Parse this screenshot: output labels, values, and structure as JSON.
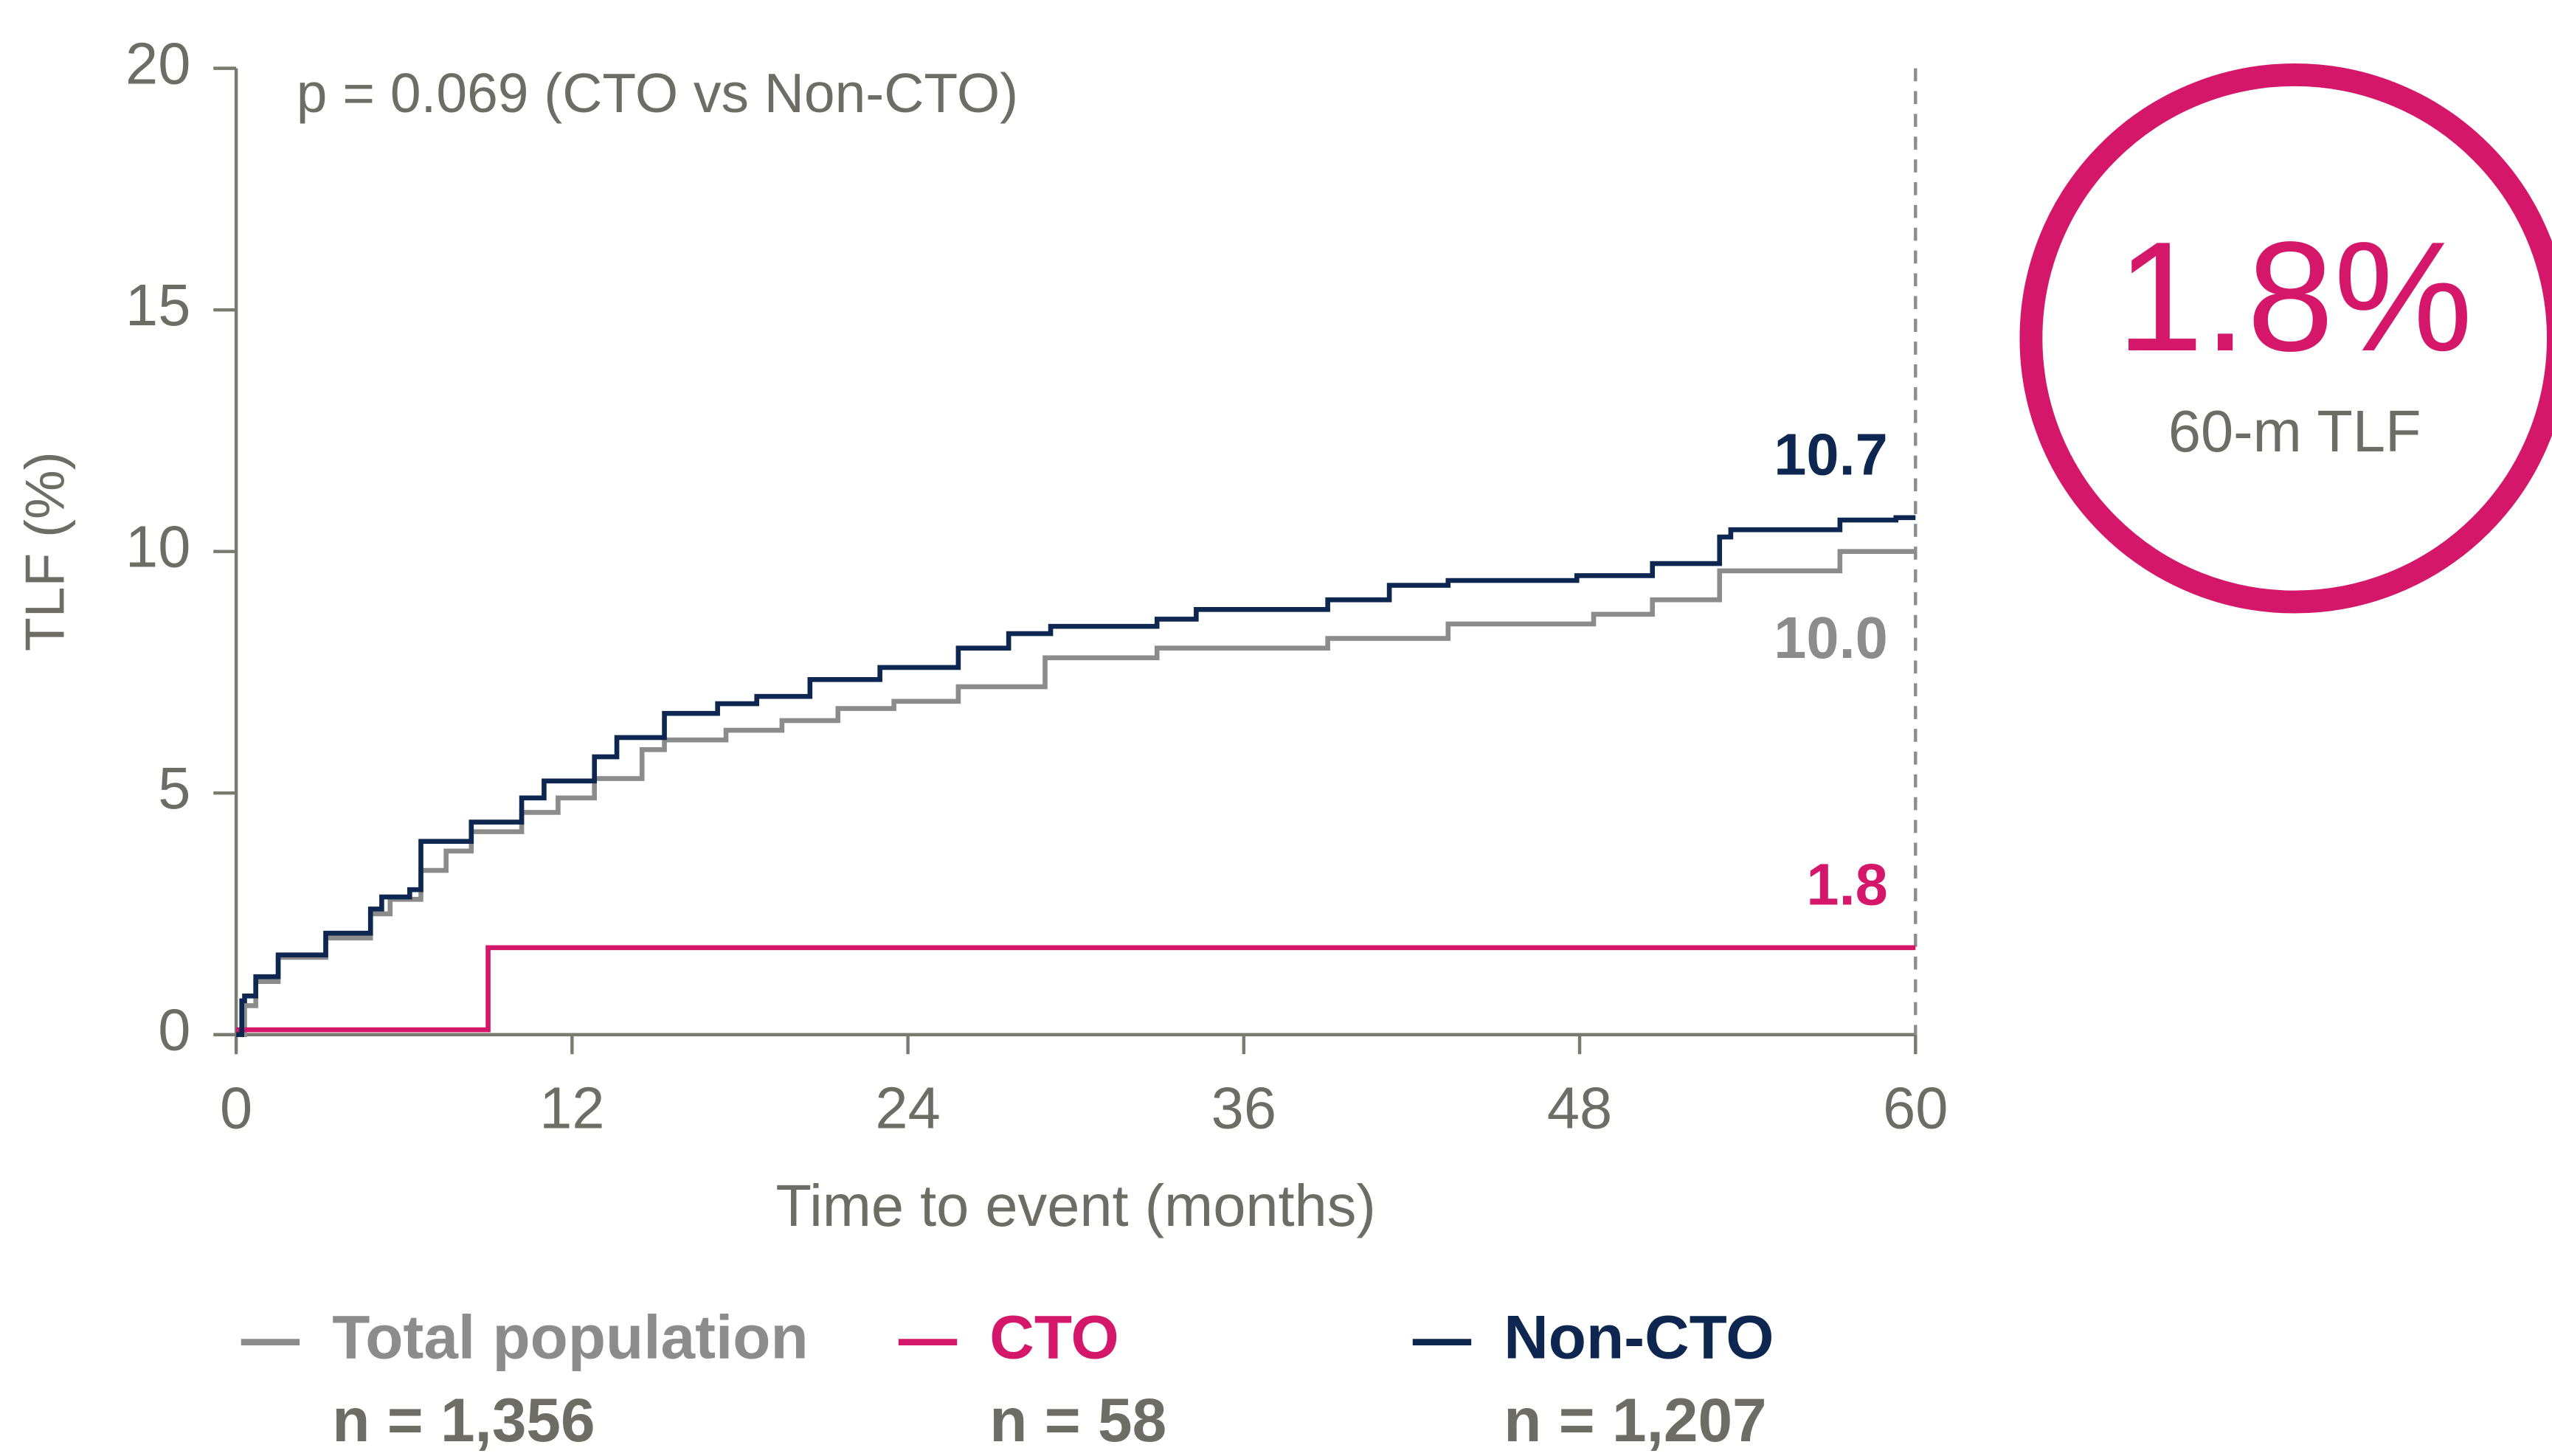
{
  "chart_data": {
    "type": "line",
    "step": true,
    "ylabel": "TLF (%)",
    "xlabel": "Time to event (months)",
    "annotation": "p = 0.069 (CTO vs Non-CTO)",
    "xlim": [
      0,
      60
    ],
    "xticks": [
      0,
      12,
      24,
      36,
      48,
      60
    ],
    "ylim": [
      0,
      20
    ],
    "yticks": [
      0,
      5,
      10,
      15,
      20
    ],
    "callout": {
      "text": "1.8%",
      "label": "60-m TLF",
      "color": "#d4176b"
    },
    "series": [
      {
        "name": "Total population",
        "n": "n = 1,356",
        "color": "#8c8c8c",
        "x": [
          0,
          0.3,
          0.7,
          1.5,
          3.2,
          4.8,
          5.5,
          6.6,
          7.5,
          8.4,
          10.2,
          11.5,
          12.8,
          14.5,
          15.3,
          17.5,
          19.5,
          21.5,
          23.5,
          25.8,
          28.9,
          32.9,
          39.0,
          43.3,
          48.5,
          50.6,
          53.0,
          57.3,
          60
        ],
        "values": [
          0,
          0.6,
          1.1,
          1.6,
          2.0,
          2.5,
          2.8,
          3.4,
          3.8,
          4.2,
          4.6,
          4.9,
          5.3,
          5.9,
          6.1,
          6.3,
          6.5,
          6.75,
          6.9,
          7.2,
          7.8,
          8.0,
          8.2,
          8.5,
          8.7,
          9.0,
          9.6,
          10.0,
          10.0
        ],
        "end_label": {
          "value": 10.0,
          "label": "10.0"
        }
      },
      {
        "name": "CTO",
        "n": "n = 58",
        "color": "#d4176b",
        "x": [
          0,
          9.0,
          60
        ],
        "values": [
          0.1,
          1.8,
          1.8
        ],
        "end_label": {
          "value": 1.8,
          "label": "1.8"
        }
      },
      {
        "name": "Non-CTO",
        "n": "n = 1,207",
        "color": "#0d2750",
        "x": [
          0,
          0.2,
          0.3,
          0.7,
          1.5,
          3.2,
          4.8,
          5.2,
          6.2,
          6.6,
          8.4,
          10.2,
          11.0,
          12.8,
          13.6,
          15.3,
          17.2,
          18.6,
          20.5,
          23.0,
          25.8,
          27.6,
          29.1,
          32.9,
          34.3,
          39.0,
          41.2,
          43.3,
          47.9,
          50.6,
          53.0,
          53.4,
          57.3,
          59.3,
          60
        ],
        "values": [
          0,
          0.7,
          0.8,
          1.2,
          1.65,
          2.1,
          2.6,
          2.85,
          3.0,
          4.0,
          4.4,
          4.9,
          5.25,
          5.75,
          6.15,
          6.65,
          6.85,
          7.0,
          7.35,
          7.6,
          8.0,
          8.3,
          8.45,
          8.6,
          8.8,
          9.0,
          9.3,
          9.4,
          9.5,
          9.75,
          10.3,
          10.45,
          10.65,
          10.7,
          10.7
        ],
        "end_label": {
          "value": 10.7,
          "label": "10.7"
        }
      }
    ]
  }
}
